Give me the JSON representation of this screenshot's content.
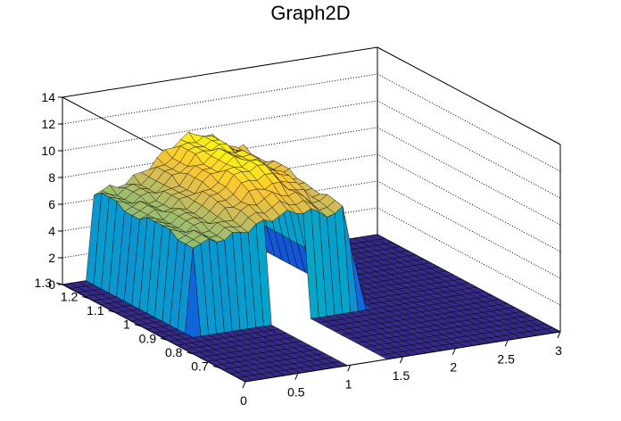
{
  "chart_data": {
    "type": "surface3d",
    "title": "Graph2D",
    "xlabel": "",
    "ylabel": "",
    "zlabel": "",
    "xlim": [
      0,
      3
    ],
    "ylim": [
      0.6,
      1.3
    ],
    "zlim": [
      0,
      14
    ],
    "x_ticks": [
      "0",
      "0.5",
      "1",
      "1.5",
      "2",
      "2.5",
      "3"
    ],
    "y_ticks": [
      "0.7",
      "0.8",
      "0.9",
      "1",
      "1.1",
      "1.2",
      "1.3"
    ],
    "z_ticks": [
      "0",
      "2",
      "4",
      "6",
      "8",
      "10",
      "12",
      "14"
    ],
    "x_tick_values": [
      0,
      0.5,
      1,
      1.5,
      2,
      2.5,
      3
    ],
    "y_tick_values": [
      0.7,
      0.8,
      0.9,
      1.0,
      1.1,
      1.2,
      1.3
    ],
    "z_tick_values": [
      0,
      2,
      4,
      6,
      8,
      10,
      12,
      14
    ],
    "grid": true,
    "palette": [
      "#352a87",
      "#0f5cdd",
      "#1481d6",
      "#06a4ca",
      "#2eb7a4",
      "#87bf77",
      "#d1bb59",
      "#fec832",
      "#f9fb0e"
    ],
    "surface": {
      "x_range": [
        0,
        3
      ],
      "y_range": [
        0.6,
        1.3
      ],
      "description_values": {
        "plateau_x_range": [
          0.3,
          1.85
        ],
        "plateau_y_range": [
          0.92,
          1.3
        ],
        "plateau_z_min": 6.5,
        "plateau_z_max": 9.8,
        "hole_x_range": [
          1.0,
          1.35
        ],
        "hole_y_range": [
          0.6,
          1.05
        ],
        "floor_z": 0
      }
    }
  }
}
